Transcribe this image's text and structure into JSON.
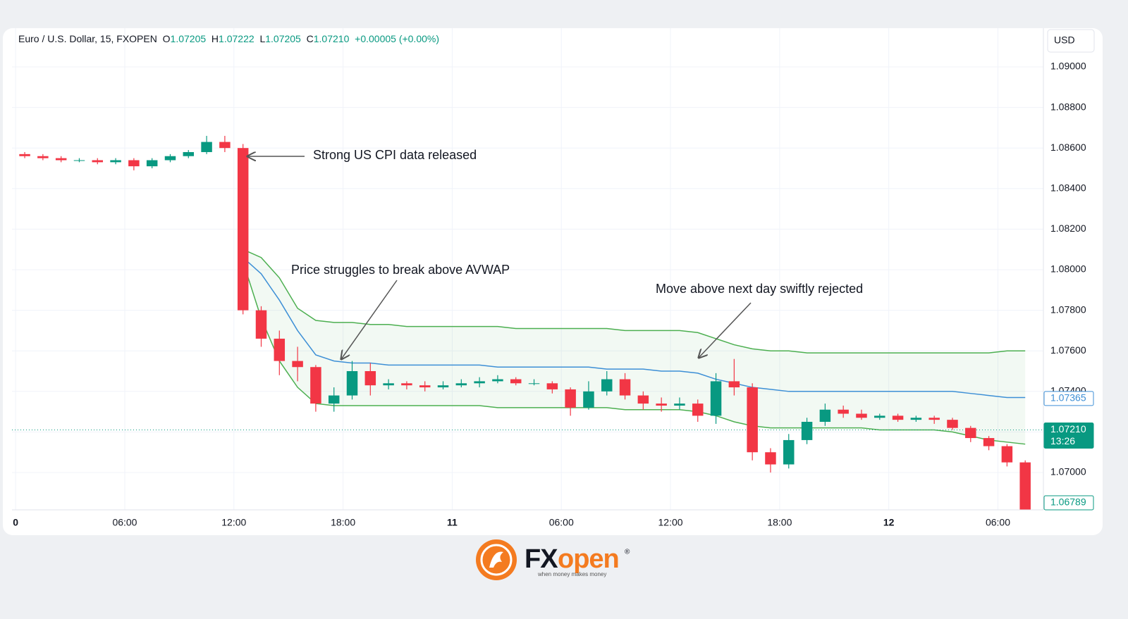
{
  "chart_data": {
    "type": "candlestick",
    "title": "Euro / U.S. Dollar, 15, FXOPEN",
    "ohlc_header": {
      "o_label": "O",
      "o": "1.07205",
      "h_label": "H",
      "h": "1.07222",
      "l_label": "L",
      "l": "1.07205",
      "c_label": "C",
      "c": "1.07210",
      "change": "+0.00005 (+0.00%)"
    },
    "currency": "USD",
    "x": [
      0,
      1,
      2,
      3,
      4,
      5,
      6,
      7,
      8,
      9,
      10,
      11,
      12,
      13,
      14,
      15,
      16,
      17,
      18,
      19,
      20,
      21,
      22,
      23,
      24,
      25,
      26,
      27,
      28,
      29,
      30,
      31,
      32,
      33,
      34,
      35,
      36,
      37,
      38,
      39,
      40,
      41,
      42,
      43,
      44,
      45,
      46,
      47,
      48,
      49,
      50,
      51,
      52,
      53,
      54,
      55
    ],
    "open": [
      1.0857,
      1.0856,
      1.0855,
      1.0854,
      1.0854,
      1.0853,
      1.0854,
      1.0851,
      1.0854,
      1.0856,
      1.0858,
      1.0863,
      1.086,
      1.078,
      1.0766,
      1.0755,
      1.0752,
      1.0734,
      1.0738,
      1.075,
      1.0743,
      1.0744,
      1.0743,
      1.0742,
      1.0743,
      1.0744,
      1.0745,
      1.0746,
      1.0744,
      1.0744,
      1.0741,
      1.0732,
      1.074,
      1.0746,
      1.0738,
      1.0734,
      1.0733,
      1.0734,
      1.0728,
      1.0745,
      1.0742,
      1.071,
      1.0704,
      1.0716,
      1.0725,
      1.0731,
      1.0729,
      1.0727,
      1.0728,
      1.0726,
      1.0727,
      1.0726,
      1.0722,
      1.0717,
      1.0713,
      1.0705
    ],
    "high": [
      1.0858,
      1.0857,
      1.0856,
      1.0855,
      1.0855,
      1.0855,
      1.0855,
      1.0855,
      1.0857,
      1.0859,
      1.0866,
      1.0866,
      1.0862,
      1.0782,
      1.077,
      1.0762,
      1.0753,
      1.0742,
      1.0755,
      1.0754,
      1.0746,
      1.0745,
      1.0745,
      1.0745,
      1.0746,
      1.0747,
      1.0748,
      1.0747,
      1.0746,
      1.0745,
      1.0742,
      1.0745,
      1.075,
      1.0749,
      1.074,
      1.0737,
      1.0737,
      1.0736,
      1.0749,
      1.0756,
      1.0744,
      1.0712,
      1.0719,
      1.0727,
      1.0734,
      1.0733,
      1.0731,
      1.0729,
      1.0729,
      1.0728,
      1.0728,
      1.0727,
      1.0723,
      1.0718,
      1.0714,
      1.0706
    ],
    "low": [
      1.0855,
      1.0854,
      1.0853,
      1.0853,
      1.0852,
      1.0852,
      1.0849,
      1.085,
      1.0853,
      1.0855,
      1.0857,
      1.0858,
      1.0778,
      1.0762,
      1.0748,
      1.0745,
      1.073,
      1.073,
      1.0736,
      1.0738,
      1.0741,
      1.0741,
      1.074,
      1.0741,
      1.0742,
      1.0742,
      1.0744,
      1.0743,
      1.0743,
      1.0739,
      1.0728,
      1.0731,
      1.0738,
      1.0736,
      1.0731,
      1.073,
      1.0731,
      1.0725,
      1.0724,
      1.0738,
      1.0706,
      1.07,
      1.0702,
      1.0714,
      1.0723,
      1.0727,
      1.0726,
      1.0726,
      1.0725,
      1.0725,
      1.0724,
      1.0721,
      1.0715,
      1.0711,
      1.0703,
      1.0678
    ],
    "close": [
      1.0856,
      1.0855,
      1.0854,
      1.0854,
      1.0853,
      1.0854,
      1.0851,
      1.0854,
      1.0856,
      1.0858,
      1.0863,
      1.086,
      1.078,
      1.0766,
      1.0755,
      1.0752,
      1.0734,
      1.0738,
      1.075,
      1.0743,
      1.0744,
      1.0743,
      1.0742,
      1.0743,
      1.0744,
      1.0745,
      1.0746,
      1.0744,
      1.0744,
      1.0741,
      1.0732,
      1.074,
      1.0746,
      1.0738,
      1.0734,
      1.0733,
      1.0734,
      1.0728,
      1.0745,
      1.0742,
      1.071,
      1.0704,
      1.0716,
      1.0725,
      1.0731,
      1.0729,
      1.0727,
      1.0728,
      1.0726,
      1.0727,
      1.0726,
      1.0722,
      1.0717,
      1.0713,
      1.0705,
      1.06789
    ],
    "up_color": "#089981",
    "down_color": "#f23645",
    "bands": [
      {
        "color": "#4caf50",
        "values": [
          null,
          null,
          null,
          null,
          null,
          null,
          null,
          null,
          null,
          null,
          null,
          null,
          1.081,
          1.0806,
          1.0796,
          1.0781,
          1.0775,
          1.0774,
          1.0774,
          1.0773,
          1.0773,
          1.0772,
          1.0772,
          1.0772,
          1.0772,
          1.0772,
          1.0772,
          1.0771,
          1.0771,
          1.0771,
          1.0771,
          1.0771,
          1.0771,
          1.077,
          1.077,
          1.077,
          1.077,
          1.0769,
          1.0766,
          1.0763,
          1.0761,
          1.076,
          1.076,
          1.0759,
          1.0759,
          1.0759,
          1.0759,
          1.0759,
          1.0759,
          1.0759,
          1.0759,
          1.0759,
          1.0759,
          1.0759,
          1.076,
          1.076
        ]
      },
      {
        "color": "#3d8fd6",
        "values": [
          null,
          null,
          null,
          null,
          null,
          null,
          null,
          null,
          null,
          null,
          null,
          null,
          1.0806,
          1.0798,
          1.0785,
          1.077,
          1.0758,
          1.0755,
          1.0754,
          1.0754,
          1.0753,
          1.0753,
          1.0753,
          1.0753,
          1.0753,
          1.0753,
          1.0752,
          1.0752,
          1.0752,
          1.0752,
          1.0752,
          1.0752,
          1.0751,
          1.0751,
          1.0751,
          1.075,
          1.075,
          1.0749,
          1.0746,
          1.0744,
          1.0742,
          1.0741,
          1.074,
          1.074,
          1.074,
          1.074,
          1.074,
          1.074,
          1.074,
          1.074,
          1.074,
          1.074,
          1.0739,
          1.0738,
          1.0737,
          1.0737
        ]
      },
      {
        "color": "#4caf50",
        "values": [
          null,
          null,
          null,
          null,
          null,
          null,
          null,
          null,
          null,
          null,
          null,
          null,
          1.0804,
          1.0776,
          1.0755,
          1.0742,
          1.0734,
          1.0733,
          1.0733,
          1.0733,
          1.0733,
          1.0733,
          1.0733,
          1.0733,
          1.0733,
          1.0733,
          1.0732,
          1.0732,
          1.0732,
          1.0732,
          1.0732,
          1.0732,
          1.0732,
          1.0731,
          1.0731,
          1.0731,
          1.0731,
          1.073,
          1.0728,
          1.0725,
          1.0723,
          1.0722,
          1.0722,
          1.0722,
          1.0722,
          1.0722,
          1.0722,
          1.0721,
          1.0721,
          1.0721,
          1.0721,
          1.072,
          1.0718,
          1.0716,
          1.0715,
          1.0714
        ]
      }
    ],
    "band_fill": "rgba(76,175,80,0.07)",
    "xlim": [
      -0.2,
      56.5
    ],
    "xticks": [
      {
        "value": 0,
        "label": "0"
      },
      {
        "value": 6,
        "label": "06:00"
      },
      {
        "value": 12,
        "label": "12:00"
      },
      {
        "value": 18,
        "label": "18:00"
      },
      {
        "value": 24,
        "label": "11"
      },
      {
        "value": 30,
        "label": "06:00"
      },
      {
        "value": 36,
        "label": "12:00"
      },
      {
        "value": 42,
        "label": "18:00"
      },
      {
        "value": 48,
        "label": "12"
      },
      {
        "value": 54,
        "label": "06:00"
      }
    ],
    "ylim": [
      1.06816,
      1.09191
    ],
    "yticks": [
      {
        "value": 1.07,
        "label": "1.07000"
      },
      {
        "value": 1.072,
        "label": "1.07200"
      },
      {
        "value": 1.074,
        "label": "1.07400"
      },
      {
        "value": 1.076,
        "label": "1.07600"
      },
      {
        "value": 1.078,
        "label": "1.07800"
      },
      {
        "value": 1.08,
        "label": "1.08000"
      },
      {
        "value": 1.082,
        "label": "1.08200"
      },
      {
        "value": 1.084,
        "label": "1.08400"
      },
      {
        "value": 1.086,
        "label": "1.08600"
      },
      {
        "value": 1.088,
        "label": "1.08800"
      },
      {
        "value": 1.09,
        "label": "1.09000"
      }
    ],
    "grid": true,
    "price_line": {
      "value": 1.0721,
      "color": "#089981"
    },
    "price_labels": [
      {
        "value": 1.07365,
        "label": "1.07365",
        "color": "#3d8fd6",
        "filled": false
      },
      {
        "value": 1.0721,
        "label": "1.07210",
        "sublabel": "13:26",
        "color": "#089981",
        "filled": true
      },
      {
        "value": 1.06789,
        "label": "1.06789",
        "color": "#089981",
        "filled": false
      }
    ],
    "annotations": [
      "Strong US CPI data released",
      "Price struggles to break above AVWAP",
      "Move above next day swiftly rejected"
    ]
  },
  "logo": {
    "brand_a": "FX",
    "brand_b": "open",
    "reg": "®",
    "tagline": "when money makes money"
  }
}
